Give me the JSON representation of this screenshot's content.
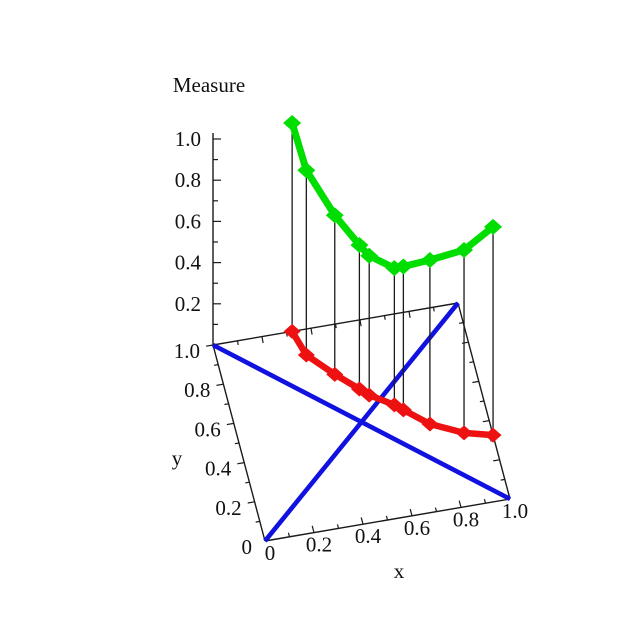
{
  "chart_data": {
    "type": "line",
    "subtype": "3d-stem-plot",
    "title": "Measure",
    "xlabel": "x",
    "ylabel": "y",
    "zlabel": "Measure",
    "x_range": [
      0,
      1
    ],
    "y_range": [
      0,
      1
    ],
    "z_range": [
      0,
      1
    ],
    "x_ticks": [
      "0",
      "0.2",
      "0.4",
      "0.6",
      "0.8",
      "1.0"
    ],
    "y_ticks": [
      "0",
      "0.2",
      "0.4",
      "0.6",
      "0.8",
      "1.0"
    ],
    "z_ticks": [
      "0.2",
      "0.4",
      "0.6",
      "0.8",
      "1.0"
    ],
    "minor_tick_step": 0.1,
    "grid": false,
    "legend": "none",
    "diagonals": [
      {
        "name": "diagonal-y-equals-x",
        "from": [
          0,
          0
        ],
        "to": [
          1,
          1
        ]
      },
      {
        "name": "diagonal-y-equals-1-minus-x",
        "from": [
          0,
          1
        ],
        "to": [
          1,
          0
        ]
      }
    ],
    "points": [
      {
        "x": 0.323,
        "y": 1.0,
        "z": 1.012
      },
      {
        "x": 0.354,
        "y": 0.873,
        "z": 0.897
      },
      {
        "x": 0.445,
        "y": 0.755,
        "z": 0.772
      },
      {
        "x": 0.526,
        "y": 0.663,
        "z": 0.699
      },
      {
        "x": 0.558,
        "y": 0.625,
        "z": 0.676
      },
      {
        "x": 0.646,
        "y": 0.556,
        "z": 0.664
      },
      {
        "x": 0.676,
        "y": 0.524,
        "z": 0.696
      },
      {
        "x": 0.765,
        "y": 0.433,
        "z": 0.796
      },
      {
        "x": 0.889,
        "y": 0.361,
        "z": 0.888
      },
      {
        "x": 1.0,
        "y": 0.326,
        "z": 1.011
      }
    ],
    "series": [
      {
        "name": "path-on-base-plane",
        "marker": "diamond",
        "color": "#ee1111"
      },
      {
        "name": "measure-curve",
        "marker": "diamond",
        "color": "#00dd00"
      },
      {
        "name": "base-diagonals",
        "marker": "none",
        "color": "#1111e0"
      }
    ],
    "colors": {
      "red_curve": "#ee1111",
      "green_curve": "#00dd00",
      "blue_diagonals": "#1111e0",
      "stems": "#1a1a1a",
      "axes": "#1a1a1a",
      "background": "#ffffff"
    }
  }
}
